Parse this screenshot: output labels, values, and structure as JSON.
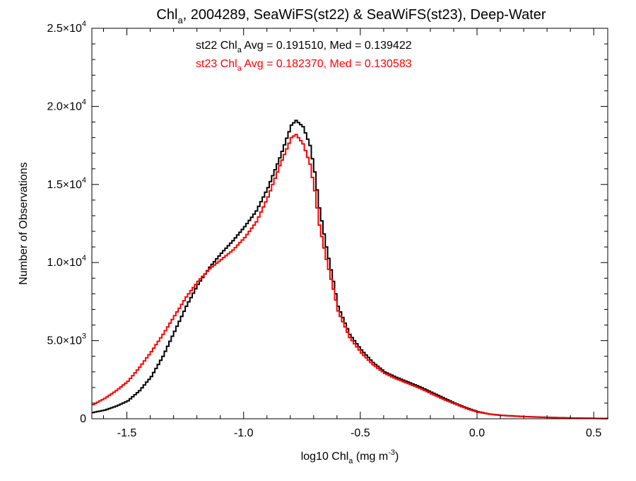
{
  "chart_data": {
    "type": "line",
    "line_style": "histogram-step",
    "title": {
      "base": "Chl",
      "sub": "a",
      "rest": ", 2004289, SeaWiFS(st22) & SeaWiFS(st23), Deep-Water"
    },
    "xlabel": {
      "base": "log10 Chl",
      "sub": "a",
      "mid": " (mg m",
      "sup": "-3",
      "end": ")"
    },
    "ylabel": "Number of Observations",
    "xlim": [
      -1.65,
      0.56
    ],
    "ylim": [
      0,
      25000
    ],
    "x_ticks": [
      {
        "value": -1.5,
        "label": "-1.5"
      },
      {
        "value": -1.0,
        "label": "-1.0"
      },
      {
        "value": -0.5,
        "label": "-0.5"
      },
      {
        "value": 0.0,
        "label": "0.0"
      },
      {
        "value": 0.5,
        "label": "0.5"
      }
    ],
    "y_ticks": [
      {
        "value": 0,
        "mant": "0",
        "exp": ""
      },
      {
        "value": 5000,
        "mant": "5.0×10",
        "exp": "3"
      },
      {
        "value": 10000,
        "mant": "1.0×10",
        "exp": "4"
      },
      {
        "value": 15000,
        "mant": "1.5×10",
        "exp": "4"
      },
      {
        "value": 20000,
        "mant": "2.0×10",
        "exp": "4"
      },
      {
        "value": 25000,
        "mant": "2.5×10",
        "exp": "4"
      }
    ],
    "legend": [
      {
        "series": "st22",
        "color": "#000000",
        "parts": {
          "pre": "st22 Chl",
          "sub": "a",
          "post": " Avg = 0.191510, Med = 0.139422"
        }
      },
      {
        "series": "st23",
        "color": "#ff0000",
        "parts": {
          "pre": "st23 Chl",
          "sub": "a",
          "post": " Avg = 0.182370, Med = 0.130583"
        }
      }
    ],
    "series": [
      {
        "name": "st22",
        "color": "#000000",
        "points": [
          [
            -1.65,
            400
          ],
          [
            -1.6,
            550
          ],
          [
            -1.55,
            800
          ],
          [
            -1.5,
            1150
          ],
          [
            -1.45,
            1800
          ],
          [
            -1.4,
            2700
          ],
          [
            -1.35,
            4000
          ],
          [
            -1.3,
            5600
          ],
          [
            -1.25,
            7200
          ],
          [
            -1.2,
            8600
          ],
          [
            -1.15,
            9700
          ],
          [
            -1.1,
            10600
          ],
          [
            -1.05,
            11400
          ],
          [
            -1.0,
            12300
          ],
          [
            -0.95,
            13300
          ],
          [
            -0.9,
            14800
          ],
          [
            -0.85,
            16700
          ],
          [
            -0.8,
            18800
          ],
          [
            -0.78,
            19100
          ],
          [
            -0.75,
            18700
          ],
          [
            -0.72,
            17500
          ],
          [
            -0.7,
            15800
          ],
          [
            -0.68,
            13500
          ],
          [
            -0.65,
            11000
          ],
          [
            -0.62,
            8800
          ],
          [
            -0.6,
            7200
          ],
          [
            -0.55,
            5400
          ],
          [
            -0.5,
            4400
          ],
          [
            -0.45,
            3600
          ],
          [
            -0.4,
            3000
          ],
          [
            -0.35,
            2650
          ],
          [
            -0.3,
            2350
          ],
          [
            -0.25,
            2050
          ],
          [
            -0.2,
            1700
          ],
          [
            -0.15,
            1350
          ],
          [
            -0.1,
            1000
          ],
          [
            -0.05,
            700
          ],
          [
            0.0,
            450
          ],
          [
            0.05,
            300
          ],
          [
            0.1,
            220
          ],
          [
            0.2,
            140
          ],
          [
            0.3,
            90
          ],
          [
            0.4,
            50
          ],
          [
            0.5,
            25
          ],
          [
            0.56,
            15
          ]
        ]
      },
      {
        "name": "st23",
        "color": "#ff0000",
        "points": [
          [
            -1.65,
            900
          ],
          [
            -1.6,
            1300
          ],
          [
            -1.55,
            1800
          ],
          [
            -1.5,
            2400
          ],
          [
            -1.45,
            3300
          ],
          [
            -1.4,
            4300
          ],
          [
            -1.35,
            5400
          ],
          [
            -1.3,
            6600
          ],
          [
            -1.25,
            7800
          ],
          [
            -1.2,
            8800
          ],
          [
            -1.15,
            9600
          ],
          [
            -1.1,
            10200
          ],
          [
            -1.05,
            10800
          ],
          [
            -1.0,
            11600
          ],
          [
            -0.95,
            12600
          ],
          [
            -0.9,
            14200
          ],
          [
            -0.85,
            16200
          ],
          [
            -0.8,
            18000
          ],
          [
            -0.78,
            18200
          ],
          [
            -0.75,
            17600
          ],
          [
            -0.72,
            16300
          ],
          [
            -0.7,
            14600
          ],
          [
            -0.68,
            12400
          ],
          [
            -0.65,
            10200
          ],
          [
            -0.62,
            8300
          ],
          [
            -0.6,
            6900
          ],
          [
            -0.55,
            5200
          ],
          [
            -0.5,
            4200
          ],
          [
            -0.45,
            3450
          ],
          [
            -0.4,
            2900
          ],
          [
            -0.35,
            2550
          ],
          [
            -0.3,
            2250
          ],
          [
            -0.25,
            1950
          ],
          [
            -0.2,
            1600
          ],
          [
            -0.15,
            1250
          ],
          [
            -0.1,
            950
          ],
          [
            -0.05,
            650
          ],
          [
            0.0,
            420
          ],
          [
            0.05,
            290
          ],
          [
            0.1,
            210
          ],
          [
            0.2,
            130
          ],
          [
            0.3,
            80
          ],
          [
            0.4,
            45
          ],
          [
            0.5,
            22
          ],
          [
            0.56,
            12
          ]
        ]
      }
    ],
    "grid": false
  }
}
